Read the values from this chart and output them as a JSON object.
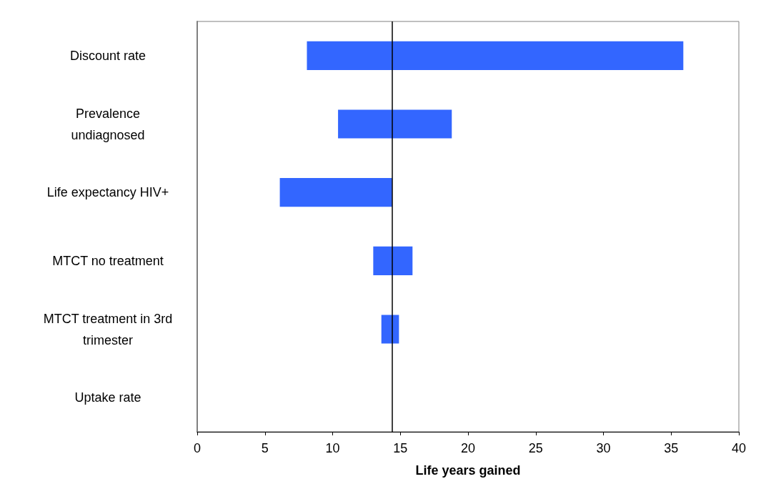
{
  "chart_data": {
    "type": "bar",
    "orientation": "horizontal",
    "xlabel": "Life years gained",
    "categories": [
      "Discount rate",
      "Prevalence\nundiagnosed",
      "Life expectancy HIV+",
      "MTCT no treatment",
      "MTCT treatment in 3rd\ntrimester",
      "Uptake rate"
    ],
    "base": [
      8.1,
      10.4,
      6.1,
      13.0,
      13.6,
      null
    ],
    "values": [
      27.8,
      8.4,
      8.3,
      2.9,
      1.3,
      null
    ],
    "color": "#3366ff",
    "xlim": [
      0,
      40
    ],
    "xticks": [
      0,
      5,
      10,
      15,
      20,
      25,
      30,
      35,
      40
    ],
    "ref_lines": [
      {
        "axis": "x",
        "value": 14.4,
        "color": "#000000"
      }
    ],
    "grid": false
  }
}
